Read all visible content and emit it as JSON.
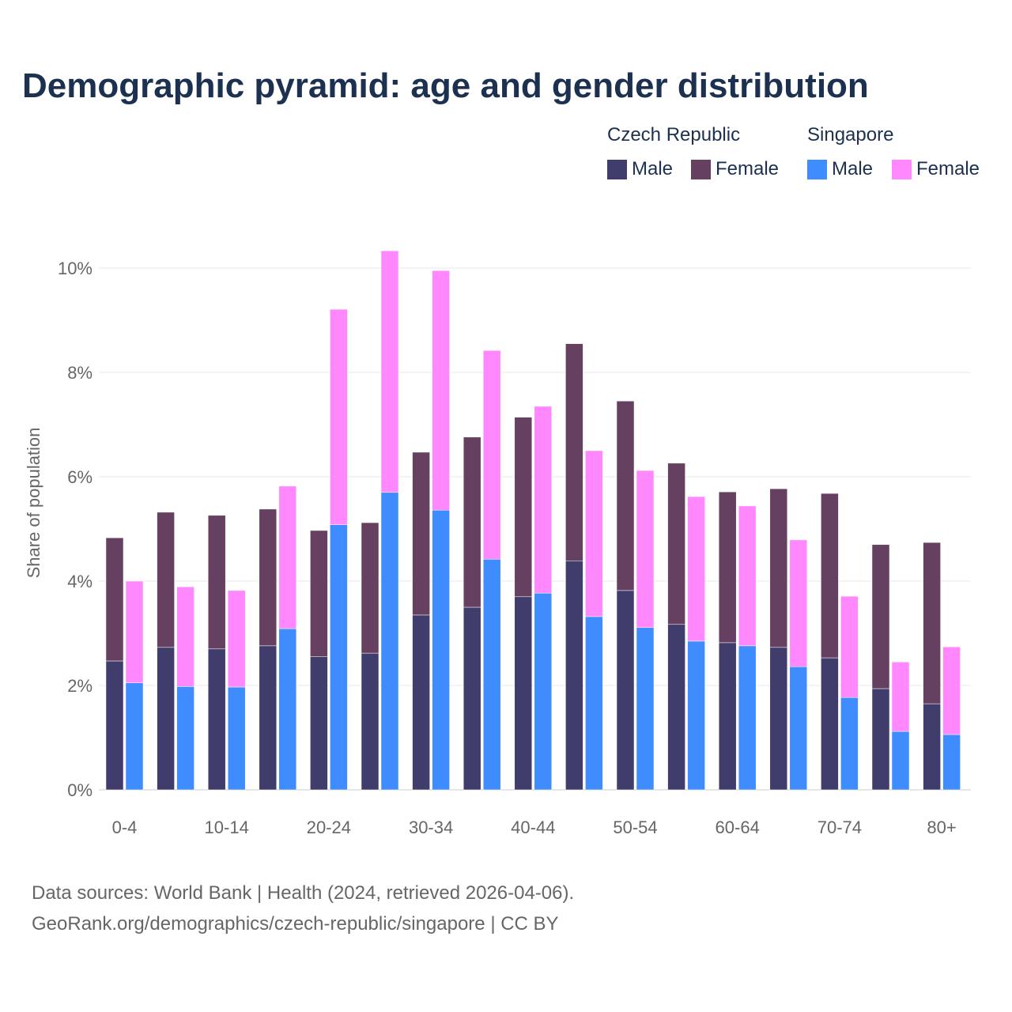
{
  "title": "Demographic pyramid: age and gender distribution",
  "legend": {
    "groups": [
      {
        "name": "Czech Republic",
        "items": [
          {
            "label": "Male",
            "color": "#403d6d"
          },
          {
            "label": "Female",
            "color": "#654060"
          }
        ]
      },
      {
        "name": "Singapore",
        "items": [
          {
            "label": "Male",
            "color": "#3f8cff"
          },
          {
            "label": "Female",
            "color": "#ff88ff"
          }
        ]
      }
    ]
  },
  "footer": {
    "line1": "Data sources: World Bank | Health (2024, retrieved 2026-04-06).",
    "line2": "GeoRank.org/demographics/czech-republic/singapore | CC BY"
  },
  "chart_data": {
    "type": "bar",
    "stacked": true,
    "title": "Demographic pyramid: age and gender distribution",
    "xlabel": "",
    "ylabel": "Share of population",
    "ylim": [
      0,
      10.5
    ],
    "yticks": [
      0,
      2,
      4,
      6,
      8,
      10
    ],
    "ytick_labels": [
      "0%",
      "2%",
      "4%",
      "6%",
      "8%",
      "10%"
    ],
    "categories": [
      "0-4",
      "5-9",
      "10-14",
      "15-19",
      "20-24",
      "25-29",
      "30-34",
      "35-39",
      "40-44",
      "45-49",
      "50-54",
      "55-59",
      "60-64",
      "65-69",
      "70-74",
      "75-79",
      "80+"
    ],
    "xtick_labels_shown": [
      "0-4",
      "10-14",
      "20-24",
      "30-34",
      "40-44",
      "50-54",
      "60-64",
      "70-74",
      "80+"
    ],
    "grid": true,
    "legend_position": "top-right",
    "series": [
      {
        "name": "Czech Republic Male",
        "stack": "Czech Republic",
        "color": "#403d6d",
        "values": [
          2.47,
          2.73,
          2.7,
          2.76,
          2.55,
          2.62,
          3.35,
          3.5,
          3.7,
          4.39,
          3.82,
          3.17,
          2.82,
          2.73,
          2.53,
          1.94,
          1.65
        ]
      },
      {
        "name": "Czech Republic Female",
        "stack": "Czech Republic",
        "color": "#654060",
        "values": [
          2.36,
          2.59,
          2.56,
          2.62,
          2.42,
          2.5,
          3.12,
          3.26,
          3.44,
          4.16,
          3.63,
          3.09,
          2.89,
          3.04,
          3.15,
          2.76,
          3.09
        ]
      },
      {
        "name": "Singapore Male",
        "stack": "Singapore",
        "color": "#3f8cff",
        "values": [
          2.05,
          1.98,
          1.97,
          3.09,
          5.08,
          5.7,
          5.36,
          4.42,
          3.77,
          3.32,
          3.11,
          2.85,
          2.76,
          2.36,
          1.77,
          1.12,
          1.06
        ]
      },
      {
        "name": "Singapore Female",
        "stack": "Singapore",
        "color": "#ff88ff",
        "values": [
          1.95,
          1.91,
          1.85,
          2.73,
          4.13,
          4.63,
          4.59,
          4.0,
          3.58,
          3.18,
          3.01,
          2.77,
          2.68,
          2.43,
          1.94,
          1.33,
          1.68
        ]
      }
    ]
  }
}
